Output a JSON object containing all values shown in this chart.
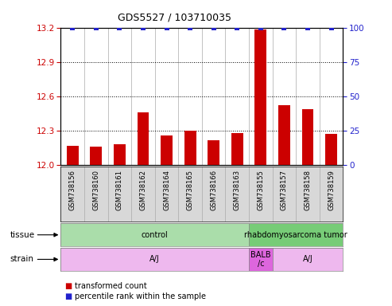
{
  "title": "GDS5527 / 103710035",
  "samples": [
    "GSM738156",
    "GSM738160",
    "GSM738161",
    "GSM738162",
    "GSM738164",
    "GSM738165",
    "GSM738166",
    "GSM738163",
    "GSM738155",
    "GSM738157",
    "GSM738158",
    "GSM738159"
  ],
  "bar_values": [
    12.17,
    12.16,
    12.18,
    12.46,
    12.26,
    12.3,
    12.22,
    12.28,
    13.18,
    12.52,
    12.49,
    12.27
  ],
  "bar_color": "#cc0000",
  "dot_color": "#2222cc",
  "ylim_left": [
    12.0,
    13.2
  ],
  "ylim_right": [
    0,
    100
  ],
  "yticks_left": [
    12.0,
    12.3,
    12.6,
    12.9,
    13.2
  ],
  "yticks_right": [
    0,
    25,
    50,
    75,
    100
  ],
  "hlines": [
    12.3,
    12.6,
    12.9
  ],
  "tissue_groups": [
    {
      "label": "control",
      "start": 0,
      "end": 8,
      "color": "#aaddaa"
    },
    {
      "label": "rhabdomyosarcoma tumor",
      "start": 8,
      "end": 12,
      "color": "#77cc77"
    }
  ],
  "strain_groups": [
    {
      "label": "A/J",
      "start": 0,
      "end": 8,
      "color": "#eeb8ee"
    },
    {
      "label": "BALB\n/c",
      "start": 8,
      "end": 9,
      "color": "#dd66dd"
    },
    {
      "label": "A/J",
      "start": 9,
      "end": 12,
      "color": "#eeb8ee"
    }
  ],
  "bar_width": 0.5,
  "background_color": "#ffffff",
  "xtick_bg": "#d8d8d8",
  "left_tick_color": "#cc0000",
  "right_tick_color": "#2222cc"
}
